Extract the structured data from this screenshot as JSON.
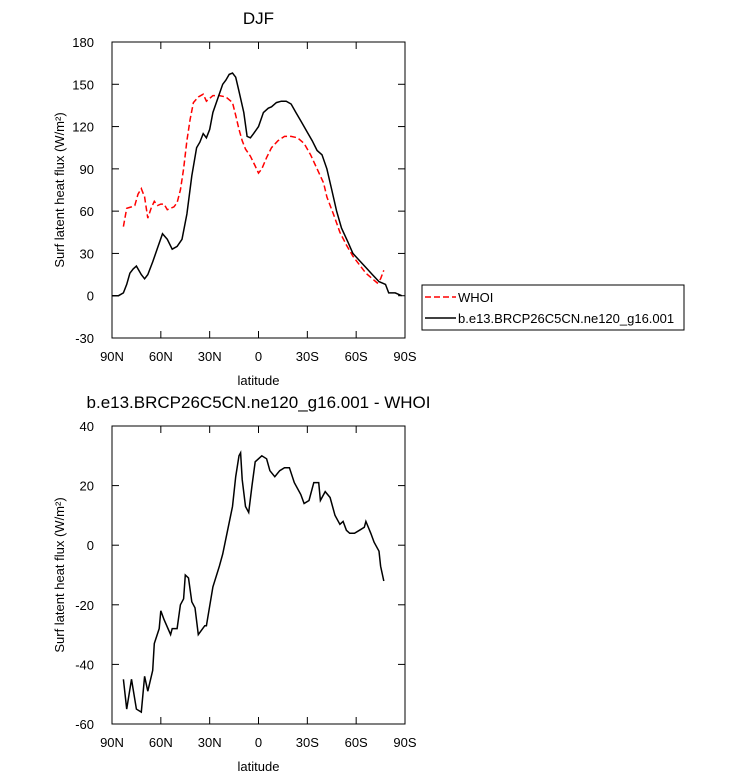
{
  "chart_data": [
    {
      "type": "line",
      "title": "DJF",
      "xlabel": "latitude",
      "ylabel": "Surf latent heat flux (W/m²)",
      "xlim": [
        90,
        -90
      ],
      "xticks": [
        {
          "value": 90,
          "label": "90N"
        },
        {
          "value": 60,
          "label": "60N"
        },
        {
          "value": 30,
          "label": "30N"
        },
        0,
        {
          "value": -30,
          "label": "30S"
        },
        {
          "value": -60,
          "label": "60S"
        },
        {
          "value": -90,
          "label": "90S"
        }
      ],
      "ylim": [
        -30,
        180
      ],
      "yticks": [
        -30,
        0,
        30,
        60,
        90,
        120,
        150,
        180
      ],
      "series": [
        {
          "name": "WHOI",
          "color": "#ff0000",
          "style": "dashed",
          "x": [
            83,
            81,
            78,
            76,
            74,
            72,
            70,
            68,
            66,
            64,
            62,
            60,
            58,
            56,
            54,
            52,
            50,
            48,
            46,
            44,
            42,
            40,
            37,
            34,
            32,
            28,
            24,
            20,
            16,
            14,
            12,
            10,
            8,
            5,
            2,
            0,
            -2,
            -5,
            -8,
            -12,
            -16,
            -20,
            -24,
            -28,
            -32,
            -36,
            -40,
            -42,
            -46,
            -50,
            -54,
            -58,
            -62,
            -66,
            -70,
            -73,
            -75,
            -77
          ],
          "values": [
            49,
            62,
            63,
            64,
            72,
            76,
            70,
            55,
            62,
            67,
            64,
            65,
            65,
            61,
            62,
            63,
            66,
            75,
            90,
            110,
            125,
            137,
            141,
            143,
            138,
            142,
            142,
            141,
            137,
            128,
            118,
            110,
            104,
            99,
            92,
            87,
            90,
            98,
            105,
            110,
            113,
            113,
            112,
            108,
            100,
            90,
            80,
            70,
            58,
            45,
            36,
            28,
            22,
            16,
            12,
            9,
            12,
            18
          ]
        },
        {
          "name": "b.e13.BRCP26C5CN.ne120_g16.001",
          "color": "#000000",
          "style": "solid",
          "x": [
            90,
            86,
            83,
            81,
            79,
            77,
            75,
            72,
            70,
            68,
            65,
            62,
            59,
            56,
            53,
            50,
            47,
            44,
            41,
            38,
            36,
            34,
            32,
            30,
            28,
            25,
            22,
            20,
            18,
            16,
            14,
            12,
            9,
            7,
            5,
            3,
            0,
            -3,
            -6,
            -8,
            -11,
            -14,
            -17,
            -20,
            -23,
            -26,
            -30,
            -33,
            -36,
            -39,
            -42,
            -45,
            -48,
            -51,
            -55,
            -58,
            -62,
            -66,
            -70,
            -74,
            -78,
            -80,
            -84,
            -88
          ],
          "values": [
            0,
            0,
            2,
            8,
            16,
            19,
            21,
            15,
            12,
            15,
            24,
            34,
            44,
            40,
            33,
            35,
            40,
            58,
            85,
            105,
            109,
            115,
            112,
            118,
            130,
            140,
            150,
            153,
            157,
            158,
            155,
            145,
            130,
            113,
            112,
            115,
            120,
            130,
            133,
            134,
            137,
            138,
            138,
            136,
            130,
            124,
            116,
            110,
            103,
            100,
            90,
            75,
            60,
            48,
            38,
            30,
            25,
            20,
            15,
            10,
            8,
            2,
            2,
            0
          ]
        }
      ]
    },
    {
      "type": "line",
      "title": "b.e13.BRCP26C5CN.ne120_g16.001 - WHOI",
      "xlabel": "latitude",
      "ylabel": "Surf latent heat flux (W/m²)",
      "xlim": [
        90,
        -90
      ],
      "xticks": [
        {
          "value": 90,
          "label": "90N"
        },
        {
          "value": 60,
          "label": "60N"
        },
        {
          "value": 30,
          "label": "30N"
        },
        0,
        {
          "value": -30,
          "label": "30S"
        },
        {
          "value": -60,
          "label": "60S"
        },
        {
          "value": -90,
          "label": "90S"
        }
      ],
      "ylim": [
        -60,
        40
      ],
      "yticks": [
        -60,
        -40,
        -20,
        0,
        20,
        40
      ],
      "series": [
        {
          "color": "#000000",
          "style": "solid",
          "x": [
            83,
            81,
            78,
            75,
            72,
            70,
            68,
            65,
            64,
            61,
            60,
            58,
            54,
            53,
            50,
            48,
            46,
            45,
            43,
            41,
            39,
            37,
            33,
            32,
            28,
            24,
            22,
            19,
            16,
            14,
            12,
            11,
            10,
            8,
            6,
            4,
            2,
            -2,
            -5,
            -7,
            -10,
            -13,
            -16,
            -19,
            -22,
            -26,
            -28,
            -31,
            -34,
            -37,
            -38,
            -41,
            -44,
            -47,
            -50,
            -52,
            -54,
            -56,
            -59,
            -62,
            -65,
            -66,
            -69,
            -71,
            -74,
            -75,
            -77
          ],
          "values": [
            -45,
            -55,
            -45,
            -55,
            -56,
            -44,
            -49,
            -42,
            -33,
            -28,
            -22,
            -25,
            -30,
            -28,
            -28,
            -20,
            -18,
            -10,
            -11,
            -19,
            -21,
            -30,
            -27,
            -27,
            -14,
            -7,
            -3,
            5,
            13,
            23,
            30,
            31,
            22,
            13,
            11,
            20,
            28,
            30,
            29,
            25,
            23,
            25,
            26,
            26,
            21,
            17,
            14,
            15,
            21,
            21,
            15,
            18,
            16,
            10,
            7,
            8,
            5,
            4,
            4,
            5,
            6,
            8,
            4,
            1,
            -2,
            -7,
            -12
          ]
        }
      ]
    }
  ]
}
